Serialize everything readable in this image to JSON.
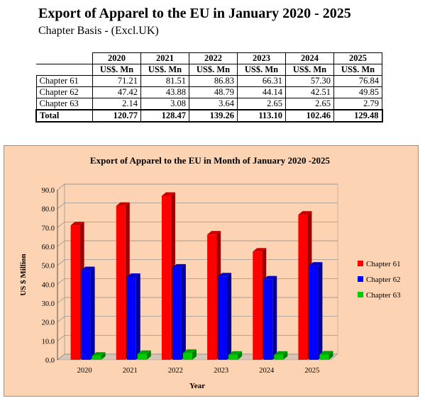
{
  "header": {
    "title": "Export of Apparel to the EU in January 2020 - 2025",
    "subtitle": "Chapter Basis - (Excl.UK)"
  },
  "table": {
    "columns": [
      {
        "year": "2020",
        "unit": "US$. Mn"
      },
      {
        "year": "2021",
        "unit": "US$. Mn"
      },
      {
        "year": "2022",
        "unit": "US$. Mn"
      },
      {
        "year": "2023",
        "unit": "US$. Mn"
      },
      {
        "year": "2024",
        "unit": "US$. Mn"
      },
      {
        "year": "2025",
        "unit": "US$. Mn"
      }
    ],
    "rows": [
      {
        "label": "Chapter 61",
        "values": [
          "71.21",
          "81.51",
          "86.83",
          "66.31",
          "57.30",
          "76.84"
        ]
      },
      {
        "label": "Chapter 62",
        "values": [
          "47.42",
          "43.88",
          "48.79",
          "44.14",
          "42.51",
          "49.85"
        ]
      },
      {
        "label": "Chapter 63",
        "values": [
          "2.14",
          "3.08",
          "3.64",
          "2.65",
          "2.65",
          "2.79"
        ]
      }
    ],
    "total": {
      "label": "Total",
      "values": [
        "120.77",
        "128.47",
        "139.26",
        "113.10",
        "102.46",
        "129.48"
      ]
    }
  },
  "chart_data": {
    "type": "bar",
    "title": "Export of Apparel to the EU in Month of January 2020 -2025",
    "xlabel": "Year",
    "ylabel": "US $ Million",
    "categories": [
      "2020",
      "2021",
      "2022",
      "2023",
      "2024",
      "2025"
    ],
    "series": [
      {
        "name": "Chapter 61",
        "values": [
          71.21,
          81.51,
          86.83,
          66.31,
          57.3,
          76.84
        ],
        "color": "#ff0000"
      },
      {
        "name": "Chapter 62",
        "values": [
          47.42,
          43.88,
          48.79,
          44.14,
          42.51,
          49.85
        ],
        "color": "#0000ff"
      },
      {
        "name": "Chapter 63",
        "values": [
          2.14,
          3.08,
          3.64,
          2.65,
          2.65,
          2.79
        ],
        "color": "#00cc00"
      }
    ],
    "ylim": [
      0,
      90
    ],
    "yticks": [
      "0.0",
      "10.0",
      "20.0",
      "30.0",
      "40.0",
      "50.0",
      "60.0",
      "70.0",
      "80.0",
      "90.0"
    ],
    "grid": true,
    "legend": "right",
    "background": "#fcd4b4"
  }
}
